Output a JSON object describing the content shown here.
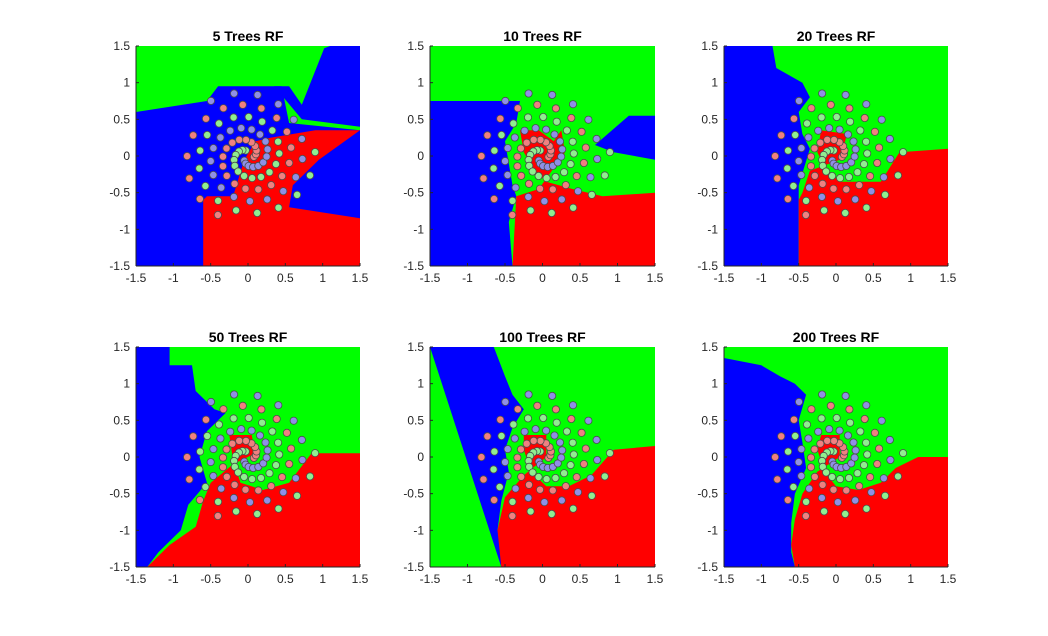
{
  "colors": {
    "red_region": "#ff0000",
    "green_region": "#00ff00",
    "blue_region": "#0000ff",
    "red_points": "#f08080",
    "green_points": "#90ee90",
    "blue_points": "#8f8fe6",
    "axis": "#262626"
  },
  "chart_data": [
    {
      "type": "scatter",
      "title": "5 Trees RF",
      "xlim": [
        -1.5,
        1.5
      ],
      "ylim": [
        -1.5,
        1.5
      ],
      "xticks": [
        "-1.5",
        "-1",
        "-0.5",
        "0",
        "0.5",
        "1",
        "1.5"
      ],
      "yticks": [
        "-1.5",
        "-1",
        "-0.5",
        "0",
        "0.5",
        "1",
        "1.5"
      ],
      "xlabel": "",
      "ylabel": "",
      "grid": false,
      "classes": [
        "red",
        "green",
        "blue"
      ]
    },
    {
      "type": "scatter",
      "title": "10 Trees RF",
      "xlim": [
        -1.5,
        1.5
      ],
      "ylim": [
        -1.5,
        1.5
      ],
      "xticks": [
        "-1.5",
        "-1",
        "-0.5",
        "0",
        "0.5",
        "1",
        "1.5"
      ],
      "yticks": [
        "-1.5",
        "-1",
        "-0.5",
        "0",
        "0.5",
        "1",
        "1.5"
      ],
      "xlabel": "",
      "ylabel": "",
      "grid": false,
      "classes": [
        "red",
        "green",
        "blue"
      ]
    },
    {
      "type": "scatter",
      "title": "20 Trees RF",
      "xlim": [
        -1.5,
        1.5
      ],
      "ylim": [
        -1.5,
        1.5
      ],
      "xticks": [
        "-1.5",
        "-1",
        "-0.5",
        "0",
        "0.5",
        "1",
        "1.5"
      ],
      "yticks": [
        "-1.5",
        "-1",
        "-0.5",
        "0",
        "0.5",
        "1",
        "1.5"
      ],
      "xlabel": "",
      "ylabel": "",
      "grid": false,
      "classes": [
        "red",
        "green",
        "blue"
      ]
    },
    {
      "type": "scatter",
      "title": "50 Trees RF",
      "xlim": [
        -1.5,
        1.5
      ],
      "ylim": [
        -1.5,
        1.5
      ],
      "xticks": [
        "-1.5",
        "-1",
        "-0.5",
        "0",
        "0.5",
        "1",
        "1.5"
      ],
      "yticks": [
        "-1.5",
        "-1",
        "-0.5",
        "0",
        "0.5",
        "1",
        "1.5"
      ],
      "xlabel": "",
      "ylabel": "",
      "grid": false,
      "classes": [
        "red",
        "green",
        "blue"
      ]
    },
    {
      "type": "scatter",
      "title": "100 Trees RF",
      "xlim": [
        -1.5,
        1.5
      ],
      "ylim": [
        -1.5,
        1.5
      ],
      "xticks": [
        "-1.5",
        "-1",
        "-0.5",
        "0",
        "0.5",
        "1",
        "1.5"
      ],
      "yticks": [
        "-1.5",
        "-1",
        "-0.5",
        "0",
        "0.5",
        "1",
        "1.5"
      ],
      "xlabel": "",
      "ylabel": "",
      "grid": false,
      "classes": [
        "red",
        "green",
        "blue"
      ]
    },
    {
      "type": "scatter",
      "title": "200 Trees RF",
      "xlim": [
        -1.5,
        1.5
      ],
      "ylim": [
        -1.5,
        1.5
      ],
      "xticks": [
        "-1.5",
        "-1",
        "-0.5",
        "0",
        "0.5",
        "1",
        "1.5"
      ],
      "yticks": [
        "-1.5",
        "-1",
        "-0.5",
        "0",
        "0.5",
        "1",
        "1.5"
      ],
      "xlabel": "",
      "ylabel": "",
      "grid": false,
      "classes": [
        "red",
        "green",
        "blue"
      ]
    }
  ]
}
